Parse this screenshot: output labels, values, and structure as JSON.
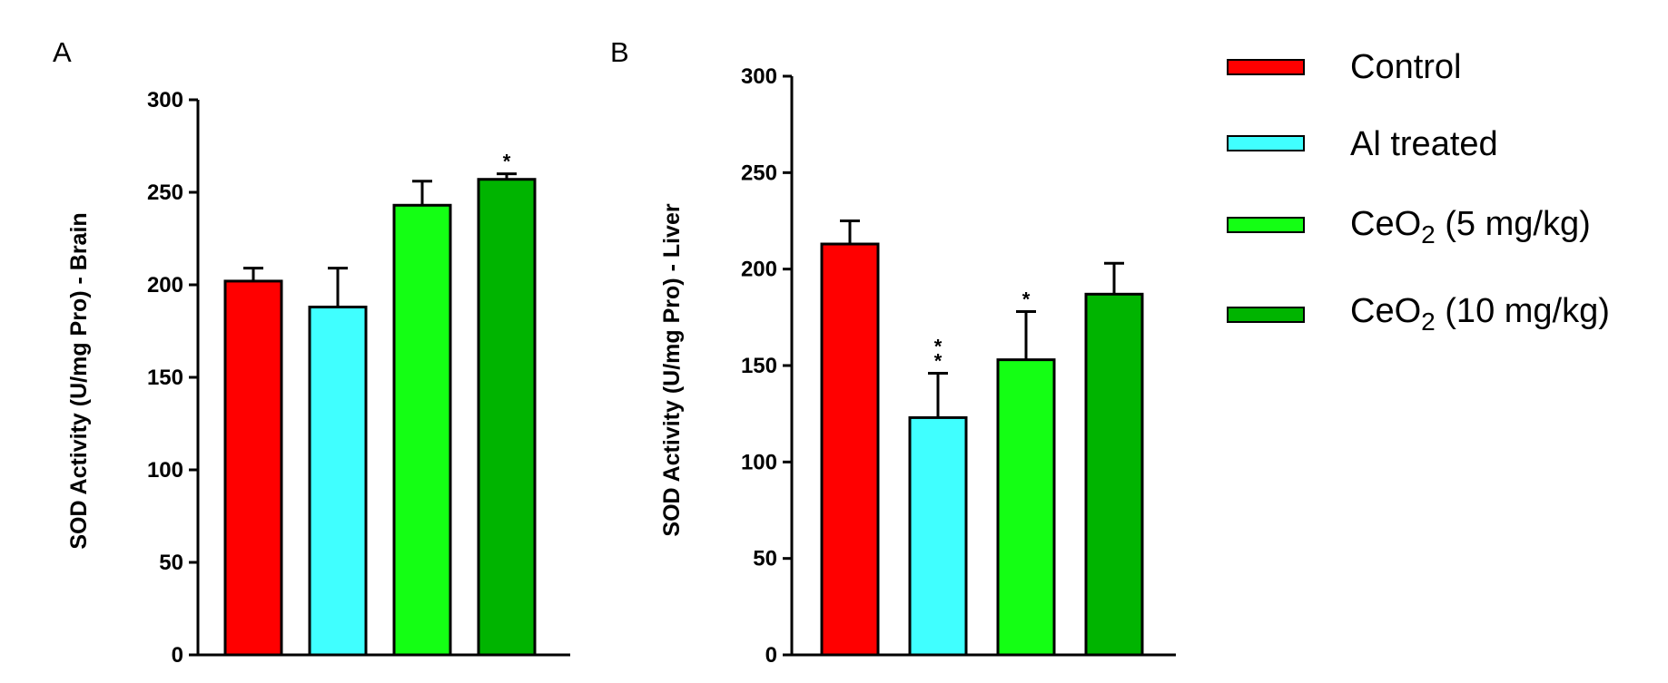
{
  "legend": {
    "items": [
      {
        "label": "Control",
        "color": "#ff0000"
      },
      {
        "label": "Al treated",
        "color": "#40ffff"
      },
      {
        "label_main": "CeO",
        "label_sub": "2",
        "label_tail": " (5 mg/kg)",
        "label": "CeO2 (5 mg/kg)",
        "color": "#14ff14"
      },
      {
        "label_main": "CeO",
        "label_sub": "2",
        "label_tail": " (10 mg/kg)",
        "label": "CeO2 (10 mg/kg)",
        "color": "#00b400"
      }
    ]
  },
  "chart_data": [
    {
      "type": "bar",
      "panel_label": "A",
      "ylabel": "SOD Activity (U/mg Pro) - Brain",
      "ylim": [
        0,
        300
      ],
      "yticks": [
        0,
        50,
        100,
        150,
        200,
        250,
        300
      ],
      "categories": [
        "Control",
        "Al treated",
        "CeO2 (5 mg/kg)",
        "CeO2 (10 mg/kg)"
      ],
      "values": [
        202,
        188,
        243,
        257
      ],
      "errors": [
        7,
        21,
        13,
        3
      ],
      "annotations": [
        "",
        "",
        "",
        "*"
      ]
    },
    {
      "type": "bar",
      "panel_label": "B",
      "ylabel": "SOD Activity (U/mg Pro) - Liver",
      "ylim": [
        0,
        300
      ],
      "yticks": [
        0,
        50,
        100,
        150,
        200,
        250,
        300
      ],
      "categories": [
        "Control",
        "Al treated",
        "CeO2 (5 mg/kg)",
        "CeO2 (10 mg/kg)"
      ],
      "values": [
        213,
        123,
        153,
        187
      ],
      "errors": [
        12,
        23,
        25,
        16
      ],
      "annotations": [
        "",
        "**",
        "*",
        ""
      ]
    }
  ]
}
